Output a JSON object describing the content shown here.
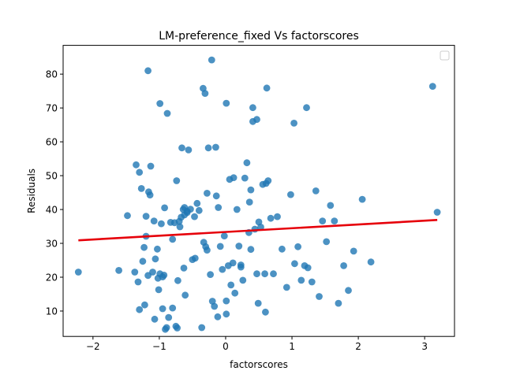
{
  "chart_data": {
    "type": "scatter",
    "title": "LM-preference_fixed Vs factorscores",
    "xlabel": "factorscores",
    "ylabel": "Residuals",
    "xlim": [
      -2.45,
      3.45
    ],
    "ylim": [
      2.5,
      88.5
    ],
    "x_ticks": [
      -2,
      -1,
      0,
      1,
      2,
      3
    ],
    "x_tick_labels": [
      "−2",
      "−1",
      "0",
      "1",
      "2",
      "3"
    ],
    "y_ticks": [
      10,
      20,
      30,
      40,
      50,
      60,
      70,
      80
    ],
    "y_tick_labels": [
      "10",
      "20",
      "30",
      "40",
      "50",
      "60",
      "70",
      "80"
    ],
    "grid": false,
    "legend": {
      "placement": "upper-right",
      "entries": []
    },
    "point_color": "#1f77b4",
    "line_color": "#e6000a",
    "fit_line": {
      "x": [
        -2.22,
        3.19
      ],
      "y": [
        30.9,
        36.9
      ]
    },
    "series": [
      {
        "x": [
          -2.22,
          -1.61,
          -1.48,
          -1.37,
          -1.32,
          -1.3,
          -1.25,
          -1.22,
          -1.2,
          -1.17,
          -1.14,
          -1.1,
          -1.08,
          -1.06,
          -1.03,
          -1.01,
          -0.99,
          -0.97,
          -0.95,
          -0.93,
          -0.91,
          -0.89,
          -0.77,
          -0.75,
          -0.72,
          -0.7,
          -0.67,
          -0.63,
          -0.61,
          -0.58,
          -1.35,
          -1.3,
          -1.27,
          -1.23,
          -1.2,
          -1.16,
          -1.13,
          -1.07,
          -1.02,
          -0.95,
          -0.92,
          -0.88,
          -0.86,
          -0.83,
          -0.8,
          -0.74,
          -0.69,
          -0.64,
          -0.62,
          -0.58,
          -0.56,
          -0.53,
          -0.5,
          -0.46,
          -0.43,
          -0.4,
          -0.36,
          -0.33,
          -0.3,
          -0.28,
          -0.26,
          -0.23,
          -0.2,
          -0.17,
          -0.14,
          -0.11,
          -0.08,
          -0.05,
          -0.02,
          0.01,
          0.04,
          0.06,
          0.08,
          0.11,
          0.14,
          0.17,
          0.2,
          0.23,
          0.26,
          0.29,
          0.32,
          0.35,
          0.38,
          0.41,
          0.44,
          0.47,
          0.5,
          0.53,
          0.56,
          0.59,
          0.61,
          0.64,
          0.68,
          0.72,
          0.78,
          0.85,
          0.92,
          0.98,
          1.04,
          1.09,
          1.14,
          1.19,
          1.24,
          1.3,
          1.36,
          1.41,
          1.46,
          1.52,
          1.58,
          1.64,
          1.7,
          1.78,
          1.85,
          1.93,
          2.06,
          2.19,
          3.12,
          3.19,
          -1.17,
          -0.99,
          -0.73,
          -0.66,
          -0.34,
          -0.31,
          -0.21,
          -0.15,
          0.01,
          0.12,
          0.23,
          0.41,
          0.47,
          0.62,
          1.03,
          1.22,
          -0.62,
          -0.47,
          -0.12,
          0.49,
          0.6,
          0.01,
          -0.28,
          0.36,
          -0.8,
          0.38
        ],
        "y": [
          21.5,
          22.0,
          38.2,
          21.5,
          18.6,
          10.4,
          24.7,
          11.8,
          38.0,
          20.5,
          44.3,
          21.5,
          36.6,
          25.4,
          28.3,
          16.3,
          21.0,
          35.8,
          10.7,
          20.6,
          4.6,
          5.1,
          36.1,
          5.5,
          19.0,
          36.5,
          37.7,
          22.7,
          14.7,
          39.1,
          53.2,
          51.0,
          46.2,
          28.8,
          32.1,
          45.2,
          52.8,
          7.6,
          19.7,
          20.1,
          40.5,
          68.4,
          8.1,
          36.2,
          31.2,
          48.5,
          34.9,
          40.0,
          38.4,
          39.5,
          57.6,
          40.1,
          25.2,
          25.6,
          41.8,
          39.7,
          5.1,
          30.3,
          29.0,
          28.0,
          58.2,
          20.8,
          12.9,
          11.4,
          44.0,
          40.6,
          29.1,
          22.3,
          32.2,
          13.0,
          23.4,
          48.9,
          17.7,
          24.2,
          15.3,
          40.0,
          29.2,
          23.0,
          19.1,
          49.3,
          53.8,
          33.2,
          28.2,
          66.0,
          34.2,
          21.0,
          36.3,
          34.8,
          47.4,
          21.0,
          47.7,
          48.5,
          37.4,
          21.0,
          37.9,
          28.3,
          17.0,
          44.4,
          24.0,
          29.0,
          19.1,
          23.4,
          22.8,
          18.6,
          45.5,
          14.3,
          36.6,
          30.5,
          41.2,
          36.6,
          12.3,
          23.4,
          16.1,
          27.7,
          43.0,
          24.5,
          76.4,
          39.2,
          81.0,
          71.3,
          5.0,
          58.2,
          75.8,
          74.3,
          84.2,
          58.4,
          71.4,
          49.4,
          23.6,
          70.1,
          66.6,
          75.9,
          65.5,
          70.1,
          40.6,
          37.9,
          8.3,
          12.3,
          9.7,
          9.1,
          44.8,
          42.2,
          10.9,
          45.8
        ]
      }
    ]
  }
}
